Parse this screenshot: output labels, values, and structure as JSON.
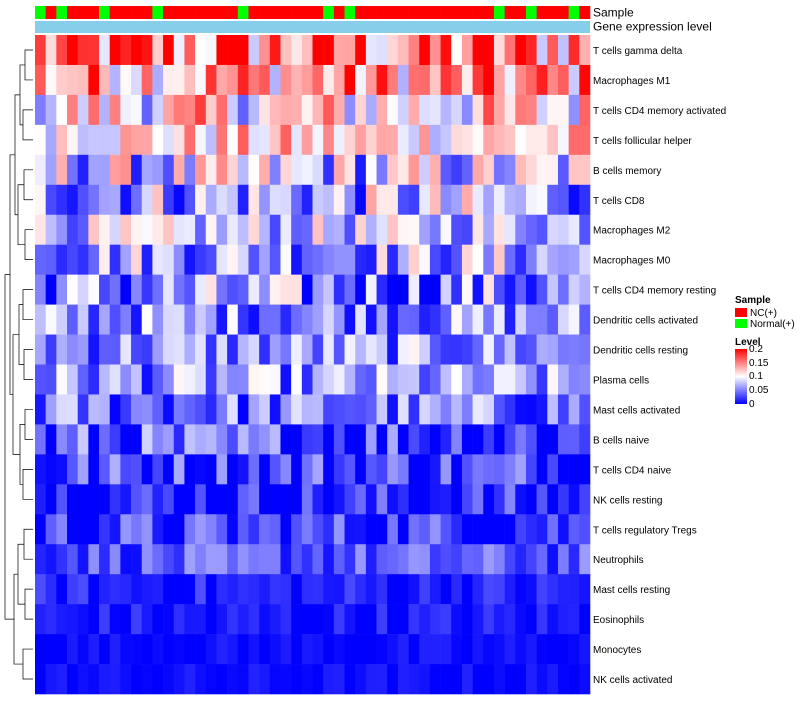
{
  "chart_data": {
    "type": "heatmap",
    "annotation_tracks": [
      "Sample",
      "Gene expression level"
    ],
    "sample_groups": [
      "N",
      "C",
      "N",
      "C",
      "C",
      "C",
      "N",
      "C",
      "C",
      "C",
      "C",
      "N",
      "C",
      "C",
      "C",
      "C",
      "C",
      "C",
      "C",
      "N",
      "C",
      "C",
      "C",
      "C",
      "C",
      "C",
      "C",
      "N",
      "C",
      "N",
      "C",
      "C",
      "C",
      "C",
      "C",
      "C",
      "C",
      "C",
      "C",
      "C",
      "C",
      "C",
      "C",
      "N",
      "C",
      "C",
      "N",
      "C",
      "C",
      "C",
      "N",
      "C"
    ],
    "rows": [
      "T cells gamma delta",
      "Macrophages M1",
      "T cells CD4 memory activated",
      "T cells follicular helper",
      "B cells memory",
      "T cells CD8",
      "Macrophages M2",
      "Macrophages M0",
      "T cells CD4 memory resting",
      "Dendritic cells activated",
      "Dendritic cells resting",
      "Plasma cells",
      "Mast cells activated",
      "B cells naive",
      "T cells CD4 naive",
      "NK cells resting",
      "T cells regulatory  Tregs",
      "Neutrophils",
      "Mast cells resting",
      "Eosinophils",
      "Monocytes",
      "NK cells activated"
    ],
    "row_profile": [
      {
        "base": 0.14,
        "var": 0.09
      },
      {
        "base": 0.13,
        "var": 0.07
      },
      {
        "base": 0.1,
        "var": 0.07
      },
      {
        "base": 0.11,
        "var": 0.05
      },
      {
        "base": 0.07,
        "var": 0.07
      },
      {
        "base": 0.06,
        "var": 0.07
      },
      {
        "base": 0.07,
        "var": 0.05
      },
      {
        "base": 0.06,
        "var": 0.06
      },
      {
        "base": 0.04,
        "var": 0.07
      },
      {
        "base": 0.05,
        "var": 0.05
      },
      {
        "base": 0.05,
        "var": 0.05
      },
      {
        "base": 0.05,
        "var": 0.05
      },
      {
        "base": 0.04,
        "var": 0.05
      },
      {
        "base": 0.02,
        "var": 0.06
      },
      {
        "base": 0.02,
        "var": 0.05
      },
      {
        "base": 0.01,
        "var": 0.04
      },
      {
        "base": 0.02,
        "var": 0.04
      },
      {
        "base": 0.03,
        "var": 0.03
      },
      {
        "base": 0.01,
        "var": 0.02
      },
      {
        "base": 0.005,
        "var": 0.02
      },
      {
        "base": 0.003,
        "var": 0.01
      },
      {
        "base": 0.003,
        "var": 0.01
      }
    ],
    "color_scale": {
      "min": 0,
      "max": 0.2,
      "low": "#0000ff",
      "mid": "#ffffff",
      "midpoint": 0.1,
      "high": "#ff0000"
    },
    "legend": {
      "sample_title": "Sample",
      "sample_entries": [
        {
          "label": "NC(+)",
          "color": "#ff0000"
        },
        {
          "label": "Normal(+)",
          "color": "#00ff00"
        }
      ],
      "level_title": "Level",
      "level_ticks": [
        "0.2",
        "0.15",
        "0.1",
        "0.05",
        "0"
      ]
    },
    "gene_expression_color": "#87ceeb"
  }
}
